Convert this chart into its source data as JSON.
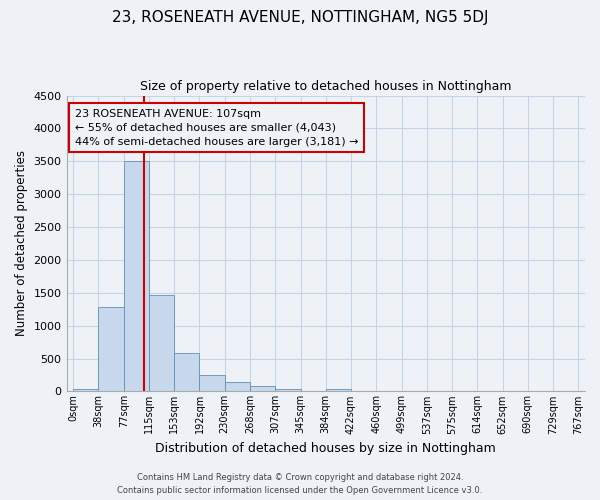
{
  "title": "23, ROSENEATH AVENUE, NOTTINGHAM, NG5 5DJ",
  "subtitle": "Size of property relative to detached houses in Nottingham",
  "xlabel": "Distribution of detached houses by size in Nottingham",
  "ylabel": "Number of detached properties",
  "bin_labels": [
    "0sqm",
    "38sqm",
    "77sqm",
    "115sqm",
    "153sqm",
    "192sqm",
    "230sqm",
    "268sqm",
    "307sqm",
    "345sqm",
    "384sqm",
    "422sqm",
    "460sqm",
    "499sqm",
    "537sqm",
    "575sqm",
    "614sqm",
    "652sqm",
    "690sqm",
    "729sqm",
    "767sqm"
  ],
  "bar_values": [
    30,
    1280,
    3500,
    1470,
    580,
    250,
    140,
    80,
    40,
    0,
    40,
    0,
    0,
    0,
    0,
    0,
    0,
    0,
    0,
    0
  ],
  "bar_color": "#c8d8ec",
  "bar_edge_color": "#6090b8",
  "vline_x": 107,
  "vline_color": "#cc0000",
  "ylim": [
    0,
    4500
  ],
  "yticks": [
    0,
    500,
    1000,
    1500,
    2000,
    2500,
    3000,
    3500,
    4000,
    4500
  ],
  "annotation_text": "23 ROSENEATH AVENUE: 107sqm\n← 55% of detached houses are smaller (4,043)\n44% of semi-detached houses are larger (3,181) →",
  "annotation_box_edge_color": "#cc0000",
  "bin_width": 38,
  "footer_line1": "Contains HM Land Registry data © Crown copyright and database right 2024.",
  "footer_line2": "Contains public sector information licensed under the Open Government Licence v3.0.",
  "bg_color": "#eef2f7",
  "grid_color": "#c5d5e5"
}
